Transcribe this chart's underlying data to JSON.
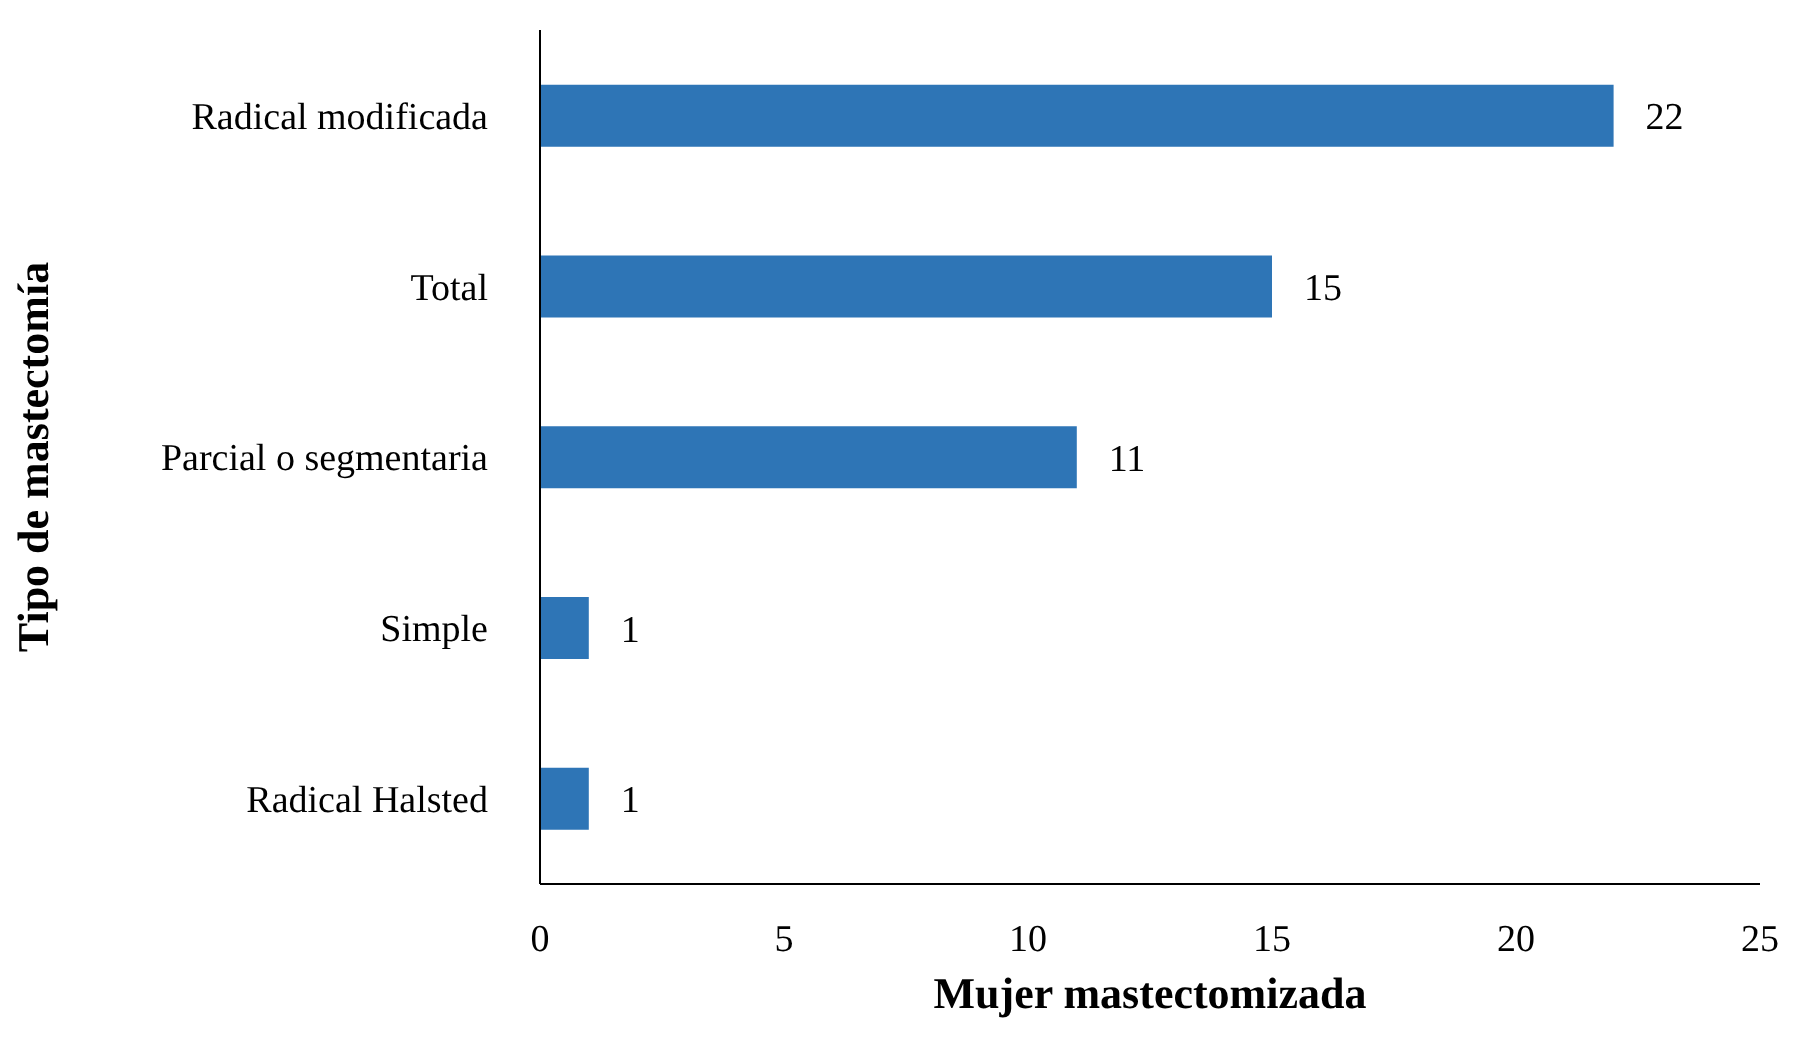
{
  "chart_data": {
    "type": "bar",
    "orientation": "horizontal",
    "xlabel": "Mujer mastectomizada",
    "ylabel": "Tipo de mastectomía",
    "categories": [
      "Radical modificada",
      "Total",
      "Parcial o segmentaria",
      "Simple",
      "Radical Halsted"
    ],
    "values": [
      22,
      15,
      11,
      1,
      1
    ],
    "color": "#2e75b6",
    "xlim": [
      0,
      25
    ],
    "xticks": [
      0,
      5,
      10,
      15,
      20,
      25
    ],
    "data_labels": true,
    "grid": false,
    "legend": false
  }
}
